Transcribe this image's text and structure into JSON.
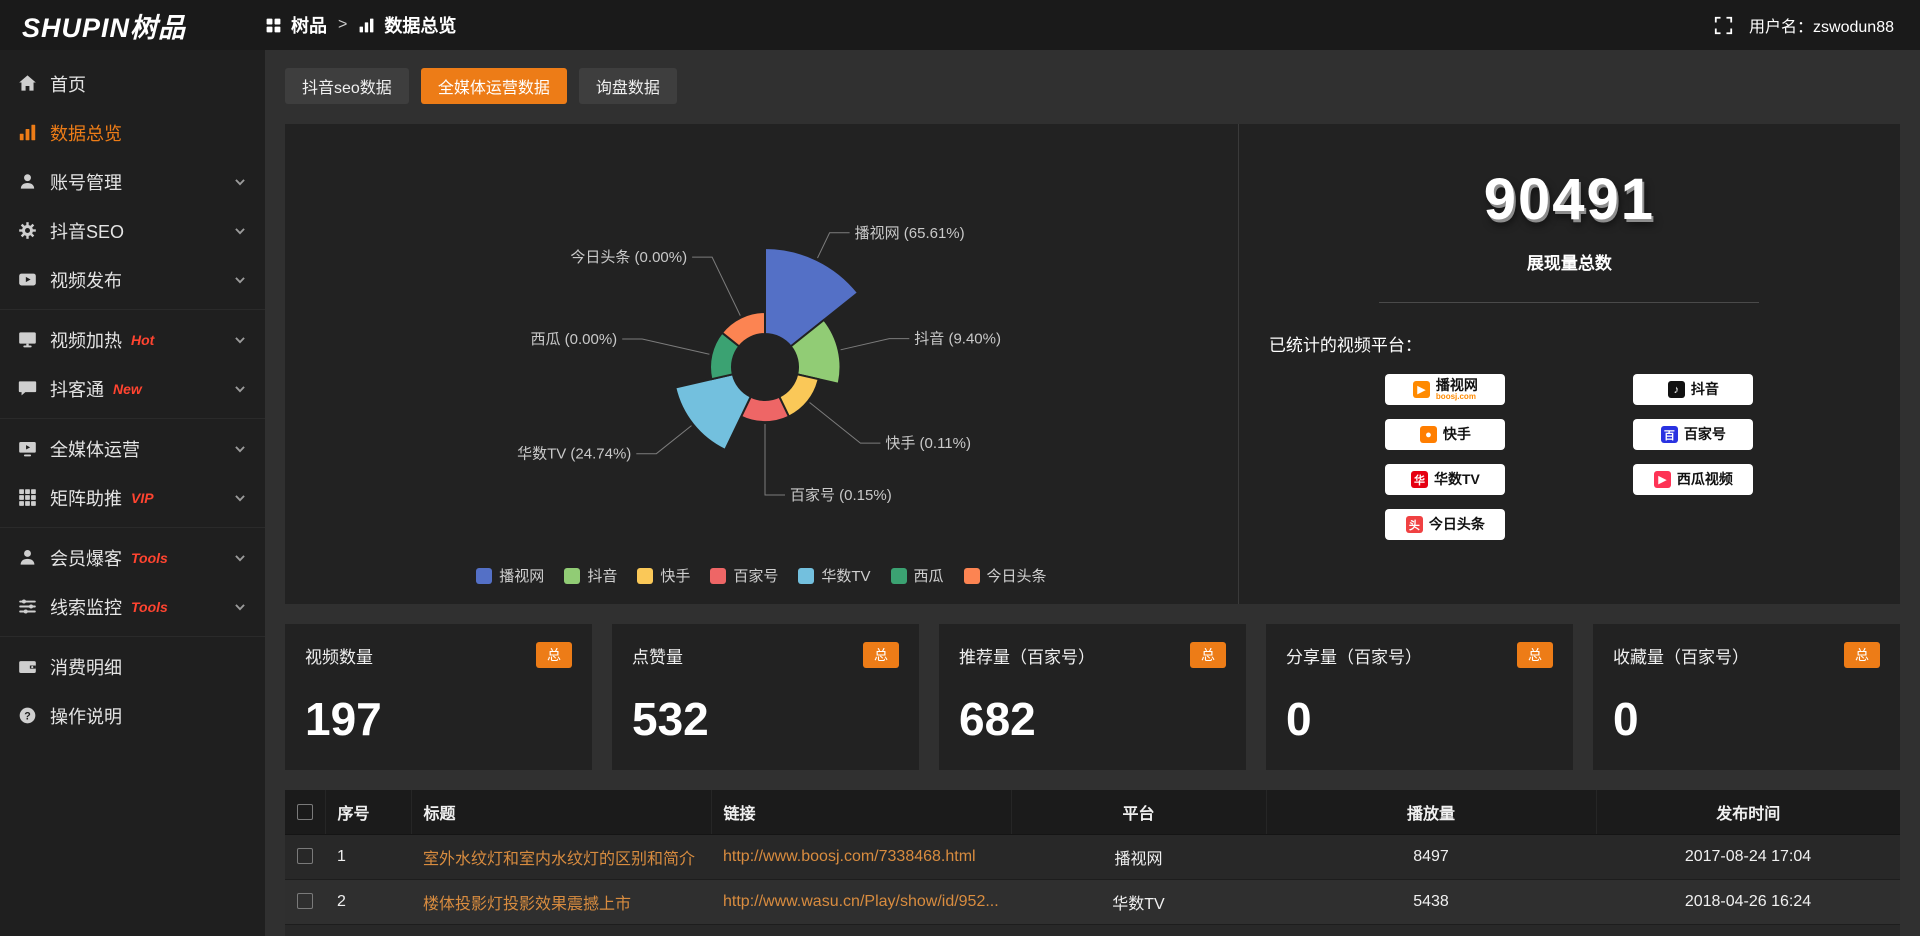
{
  "accent": "#ED7C17",
  "header": {
    "logo": "SHUPIN树品",
    "breadcrumb_root": "树品",
    "breadcrumb_sep": ">",
    "breadcrumb_current": "数据总览",
    "username": "用户名：zswodun88"
  },
  "sidebar": {
    "groups": [
      {
        "items": [
          {
            "key": "home",
            "label": "首页",
            "icon": "home-icon"
          },
          {
            "key": "data-overview",
            "label": "数据总览",
            "icon": "chart-icon",
            "active": true
          },
          {
            "key": "account-management",
            "label": "账号管理",
            "icon": "user-icon",
            "chevron": true
          },
          {
            "key": "douyin-seo",
            "label": "抖音SEO",
            "icon": "gear-icon",
            "chevron": true
          },
          {
            "key": "video-publish",
            "label": "视频发布",
            "icon": "video-icon",
            "chevron": true
          }
        ]
      },
      {
        "items": [
          {
            "key": "video-heating",
            "label": "视频加热",
            "icon": "monitor-icon",
            "badge": "Hot",
            "chevron": true
          },
          {
            "key": "douketong",
            "label": "抖客通",
            "icon": "chat-icon",
            "badge": "New",
            "chevron": true
          }
        ]
      },
      {
        "items": [
          {
            "key": "media-operation",
            "label": "全媒体运营",
            "icon": "display-icon",
            "chevron": true
          },
          {
            "key": "matrix-boost",
            "label": "矩阵助推",
            "icon": "grid-icon",
            "badge": "VIP",
            "chevron": true
          }
        ]
      },
      {
        "items": [
          {
            "key": "member-leads",
            "label": "会员爆客",
            "icon": "users-icon",
            "badge": "Tools",
            "chevron": true
          },
          {
            "key": "lead-monitor",
            "label": "线索监控",
            "icon": "filter-icon",
            "badge": "Tools",
            "chevron": true
          }
        ]
      },
      {
        "items": [
          {
            "key": "consumption-detail",
            "label": "消费明细",
            "icon": "wallet-icon"
          },
          {
            "key": "instructions",
            "label": "操作说明",
            "icon": "help-icon"
          }
        ]
      }
    ]
  },
  "tabs": [
    {
      "key": "douyin-seo-data",
      "label": "抖音seo数据"
    },
    {
      "key": "media-operation-data",
      "label": "全媒体运营数据",
      "active": true
    },
    {
      "key": "inquiry-data",
      "label": "询盘数据"
    }
  ],
  "chart_data": {
    "type": "pie",
    "style": "nightingale-rose-donut",
    "legend_position": "bottom",
    "slices": [
      {
        "key": "boosj",
        "name": "播视网",
        "pct": 65.61,
        "color": "#5470c6"
      },
      {
        "key": "douyin",
        "name": "抖音",
        "pct": 9.4,
        "color": "#91cc75"
      },
      {
        "key": "kuaishou",
        "name": "快手",
        "pct": 0.11,
        "color": "#fac858"
      },
      {
        "key": "baijiahao",
        "name": "百家号",
        "pct": 0.15,
        "color": "#ee6666"
      },
      {
        "key": "wasu",
        "name": "华数TV",
        "pct": 24.74,
        "color": "#73c0de"
      },
      {
        "key": "xigua",
        "name": "西瓜",
        "pct": 0.0,
        "color": "#3ba272"
      },
      {
        "key": "toutiao",
        "name": "今日头条",
        "pct": 0.0,
        "color": "#fc8452"
      }
    ]
  },
  "summary": {
    "total": "90491",
    "total_label": "展现量总数",
    "platforms_title": "已统计的视频平台：",
    "platforms": [
      {
        "key": "boosj",
        "name": "播视网",
        "sub": "boosj.com",
        "logo": "play",
        "logo_color": "#ff8a00"
      },
      {
        "key": "douyin",
        "name": "抖音",
        "logo": "note",
        "logo_color": "#111111"
      },
      {
        "key": "kuaishou",
        "name": "快手",
        "logo": "camera",
        "logo_color": "#ff7e00"
      },
      {
        "key": "baijiahao",
        "name": "百家号",
        "logo": "bai",
        "logo_color": "#2932e1"
      },
      {
        "key": "wasu",
        "name": "华数TV",
        "logo": "hua",
        "logo_color": "#e60012"
      },
      {
        "key": "xigua",
        "name": "西瓜视频",
        "logo": "play",
        "logo_color": "#fe3355"
      },
      {
        "key": "toutiao",
        "name": "今日头条",
        "logo": "tou",
        "logo_color": "#f04142"
      }
    ]
  },
  "stat_cards": [
    {
      "key": "video-count",
      "label": "视频数量",
      "badge": "总",
      "value": "197"
    },
    {
      "key": "like-count",
      "label": "点赞量",
      "badge": "总",
      "value": "532"
    },
    {
      "key": "recommend-count",
      "label": "推荐量（百家号）",
      "badge": "总",
      "value": "682"
    },
    {
      "key": "share-count",
      "label": "分享量（百家号）",
      "badge": "总",
      "value": "0"
    },
    {
      "key": "favorite-count",
      "label": "收藏量（百家号）",
      "badge": "总",
      "value": "0"
    }
  ],
  "table": {
    "headers": [
      "序号",
      "标题",
      "链接",
      "平台",
      "播放量",
      "发布时间"
    ],
    "rows": [
      {
        "no": "1",
        "title": "室外水纹灯和室内水纹灯的区别和简介",
        "link": "http://www.boosj.com/7338468.html",
        "platform": "播视网",
        "plays": "8497",
        "time": "2017-08-24 17:04"
      },
      {
        "no": "2",
        "title": "楼体投影灯投影效果震撼上市",
        "link": "http://www.wasu.cn/Play/show/id/952...",
        "platform": "华数TV",
        "plays": "5438",
        "time": "2018-04-26 16:24"
      }
    ]
  }
}
